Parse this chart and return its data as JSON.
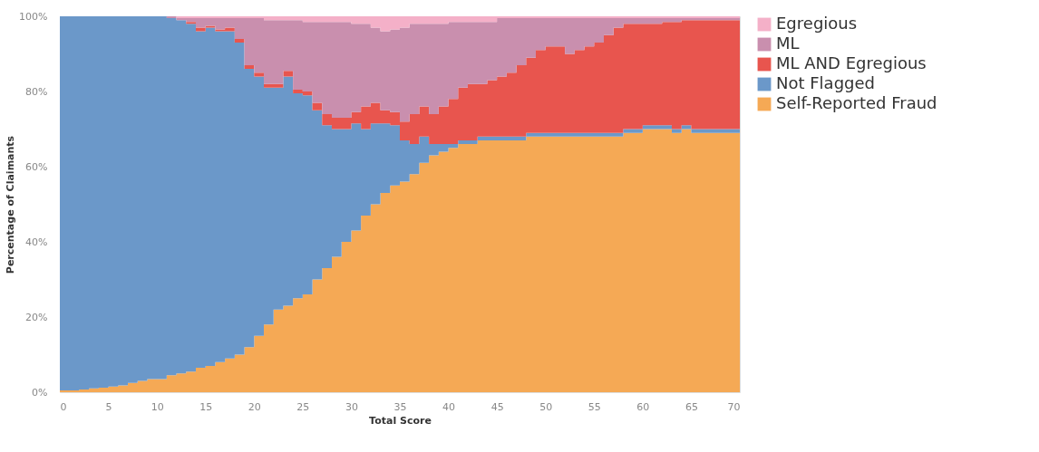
{
  "chart_data": {
    "type": "area",
    "stacked": true,
    "xlabel": "Total Score",
    "ylabel": "Percentage of Claimants",
    "x": [
      0,
      1,
      2,
      3,
      4,
      5,
      6,
      7,
      8,
      9,
      10,
      11,
      12,
      13,
      14,
      15,
      16,
      17,
      18,
      19,
      20,
      21,
      22,
      23,
      24,
      25,
      26,
      27,
      28,
      29,
      30,
      31,
      32,
      33,
      34,
      35,
      36,
      37,
      38,
      39,
      40,
      41,
      42,
      43,
      44,
      45,
      46,
      47,
      48,
      49,
      50,
      51,
      52,
      53,
      54,
      55,
      56,
      57,
      58,
      59,
      60,
      61,
      62,
      63,
      64,
      65,
      66,
      67,
      68,
      69,
      70
    ],
    "series": [
      {
        "name": "Self-Reported Fraud",
        "color": "#f5a955",
        "values": [
          0.5,
          0.5,
          0.7,
          1,
          1.2,
          1.5,
          1.8,
          2.5,
          3,
          3.5,
          3.5,
          4.5,
          5,
          5.5,
          6.5,
          7,
          8,
          9,
          10,
          12,
          15,
          18,
          22,
          23,
          25,
          26,
          30,
          33,
          36,
          40,
          43,
          47,
          50,
          53,
          55,
          56,
          58,
          61,
          63,
          64,
          65,
          66,
          66,
          67,
          67,
          67,
          67,
          67,
          68,
          68,
          68,
          68,
          68,
          68,
          68,
          68,
          68,
          68,
          69,
          69,
          70,
          70,
          70,
          69,
          70,
          69,
          69,
          69,
          69,
          69,
          70
        ]
      },
      {
        "name": "Not Flagged",
        "color": "#6b98c9",
        "values": [
          99.5,
          99.5,
          99.3,
          99,
          98.8,
          98.5,
          98.2,
          97.5,
          97,
          96.5,
          96.5,
          95,
          94,
          92.5,
          89.5,
          90,
          88,
          87,
          83,
          74,
          69,
          63,
          59,
          61,
          54.5,
          53,
          45,
          38,
          34,
          30,
          28.5,
          23,
          21.5,
          18.5,
          16,
          11,
          8,
          7,
          3,
          2,
          1,
          1,
          1,
          1,
          1,
          1,
          1,
          1,
          1,
          1,
          1,
          1,
          1,
          1,
          1,
          1,
          1,
          1,
          1,
          1,
          1,
          1,
          1,
          1,
          1,
          1,
          1,
          1,
          1,
          1,
          1
        ]
      },
      {
        "name": "ML AND Egregious",
        "color": "#e8554e",
        "values": [
          0,
          0,
          0,
          0,
          0,
          0,
          0,
          0,
          0,
          0,
          0,
          0,
          0,
          0.5,
          1,
          0.5,
          0.5,
          1,
          1,
          1,
          1,
          1,
          1,
          1.5,
          1,
          1,
          2,
          3,
          3,
          3,
          3,
          6,
          5.5,
          3.5,
          3.5,
          5,
          8,
          8,
          8,
          10,
          12,
          14,
          15,
          14,
          15,
          16,
          17,
          19,
          20,
          22,
          23,
          23,
          21,
          22,
          23,
          24,
          26,
          28,
          28,
          28,
          27,
          27,
          27.5,
          28.5,
          28,
          29,
          29,
          29,
          29,
          29,
          28
        ]
      },
      {
        "name": "ML",
        "color": "#c98fae",
        "values": [
          0,
          0,
          0,
          0,
          0,
          0,
          0,
          0,
          0,
          0,
          0,
          0.5,
          0.5,
          1,
          2.5,
          2,
          3,
          2.5,
          5.5,
          12.5,
          14.5,
          17,
          17,
          13.5,
          18.5,
          18.5,
          21.5,
          24.5,
          25.5,
          25.5,
          23.5,
          22,
          20,
          21,
          22,
          25,
          24,
          22,
          24,
          22,
          20.5,
          17.5,
          16.5,
          16.5,
          15.5,
          15.5,
          14.5,
          12.5,
          10.5,
          8.5,
          7.5,
          7.5,
          9.5,
          8.5,
          7.5,
          6.5,
          4.5,
          2.5,
          1.5,
          1.5,
          1.5,
          1.5,
          1,
          1,
          0.5,
          0.5,
          0.5,
          0.5,
          0.5,
          0.5,
          0.5
        ]
      },
      {
        "name": "Egregious",
        "color": "#f4b0c8",
        "values": [
          0,
          0,
          0,
          0,
          0,
          0,
          0,
          0,
          0,
          0,
          0,
          0,
          0.5,
          0.5,
          0.5,
          0.5,
          0.5,
          0.5,
          0.5,
          0.5,
          0.5,
          1,
          1,
          1,
          1,
          1.5,
          1.5,
          1.5,
          1.5,
          1.5,
          2,
          2,
          3,
          4,
          3.5,
          3,
          2,
          2,
          2,
          2,
          1.5,
          1.5,
          1.5,
          1.5,
          1.5,
          0.5,
          0.5,
          0.5,
          0.5,
          0.5,
          0.5,
          0.5,
          0.5,
          0.5,
          0.5,
          0.5,
          0.5,
          0.5,
          0.5,
          0.5,
          0.5,
          0.5,
          0.5,
          0.5,
          0.5,
          0.5,
          0.5,
          0.5,
          0.5,
          0.5,
          0.5
        ]
      }
    ],
    "xlim": [
      0,
      70
    ],
    "xticks": [
      0,
      5,
      10,
      15,
      20,
      25,
      30,
      35,
      40,
      45,
      50,
      55,
      60,
      65,
      70
    ],
    "ylim": [
      0,
      100
    ],
    "yticks": [
      {
        "value": 0,
        "label": "0%"
      },
      {
        "value": 20,
        "label": "20%"
      },
      {
        "value": 40,
        "label": "40%"
      },
      {
        "value": 60,
        "label": "60%"
      },
      {
        "value": 80,
        "label": "80%"
      },
      {
        "value": 100,
        "label": "100%"
      }
    ],
    "grid": false,
    "legend": "right"
  }
}
